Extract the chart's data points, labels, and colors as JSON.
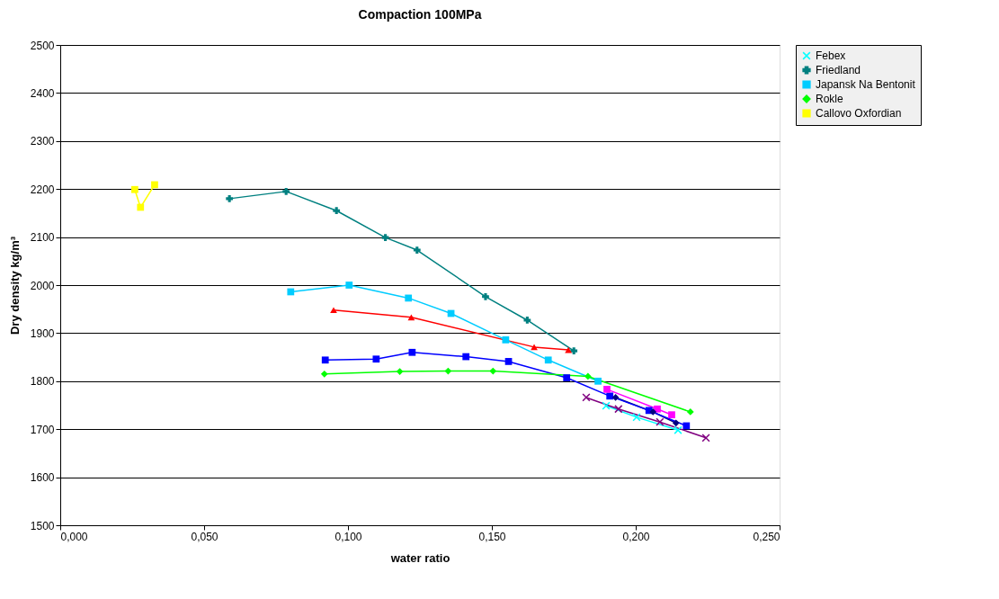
{
  "chart_data": {
    "type": "line",
    "title": "Compaction 100MPa",
    "xlabel": "water ratio",
    "ylabel": "Dry density kg/m³",
    "xlim": [
      0,
      0.25
    ],
    "xticks": [
      {
        "value": 0,
        "label": "0,000"
      },
      {
        "value": 0.05,
        "label": "0,050"
      },
      {
        "value": 0.1,
        "label": "0,100"
      },
      {
        "value": 0.15,
        "label": "0,150"
      },
      {
        "value": 0.2,
        "label": "0,200"
      },
      {
        "value": 0.25,
        "label": "0,250"
      }
    ],
    "ylim": [
      1500,
      2500
    ],
    "yticks": [
      1500,
      1600,
      1700,
      1800,
      1900,
      2000,
      2100,
      2200,
      2300,
      2400,
      2500
    ],
    "grid": "y",
    "legend": "right",
    "line_style": "solid",
    "series": [
      {
        "color": "#000080",
        "marker": "diamond",
        "x": [
          0.193,
          0.206,
          0.214
        ],
        "values": [
          1766,
          1736,
          1713
        ]
      },
      {
        "color": "#ff00ff",
        "marker": "square",
        "x": [
          0.19,
          0.2075,
          0.2125
        ],
        "values": [
          1783,
          1742,
          1730
        ]
      },
      {
        "color": "#ff0000",
        "marker": "triangle",
        "x": [
          0.095,
          0.122,
          0.1647,
          0.1766
        ],
        "values": [
          1948,
          1933,
          1871,
          1865
        ]
      },
      {
        "name": "Febex",
        "color": "#00ffff",
        "marker": "cross",
        "x": [
          0.1897,
          0.2003,
          0.2147
        ],
        "values": [
          1749,
          1725,
          1698
        ]
      },
      {
        "color": "#800080",
        "marker": "cross",
        "x": [
          0.1828,
          0.194,
          0.2084,
          0.2244
        ],
        "values": [
          1766,
          1742,
          1715,
          1682
        ]
      },
      {
        "name": "Friedland",
        "color": "#008080",
        "marker": "plus",
        "x": [
          0.0588,
          0.0785,
          0.096,
          0.113,
          0.124,
          0.1478,
          0.1623,
          0.1785
        ],
        "values": [
          2180,
          2195,
          2155,
          2099,
          2073,
          1976,
          1927,
          1863
        ]
      },
      {
        "color": "#0000ff",
        "marker": "square",
        "x": [
          0.0921,
          0.1098,
          0.1223,
          0.141,
          0.1558,
          0.176,
          0.191,
          0.2046,
          0.2176
        ],
        "values": [
          1844,
          1846,
          1860,
          1851,
          1841,
          1807,
          1769,
          1739,
          1707
        ]
      },
      {
        "name": "Japansk Na Bentonit",
        "color": "#00ccff",
        "marker": "square",
        "x": [
          0.0801,
          0.1004,
          0.121,
          0.1358,
          0.1548,
          0.1696,
          0.1869
        ],
        "values": [
          1986,
          2000,
          1973,
          1941,
          1886,
          1844,
          1800
        ]
      },
      {
        "name": "Rokle",
        "color": "#00ff00",
        "marker": "diamond",
        "x": [
          0.0918,
          0.118,
          0.1348,
          0.1504,
          0.1834,
          0.219
        ],
        "values": [
          1815,
          1820,
          1821,
          1821,
          1810,
          1736
        ]
      },
      {
        "name": "Callovo Oxfordian",
        "color": "#ffff00",
        "marker": "square",
        "x": [
          0.0259,
          0.0279,
          0.0328
        ],
        "values": [
          2199,
          2162,
          2209
        ]
      }
    ]
  }
}
